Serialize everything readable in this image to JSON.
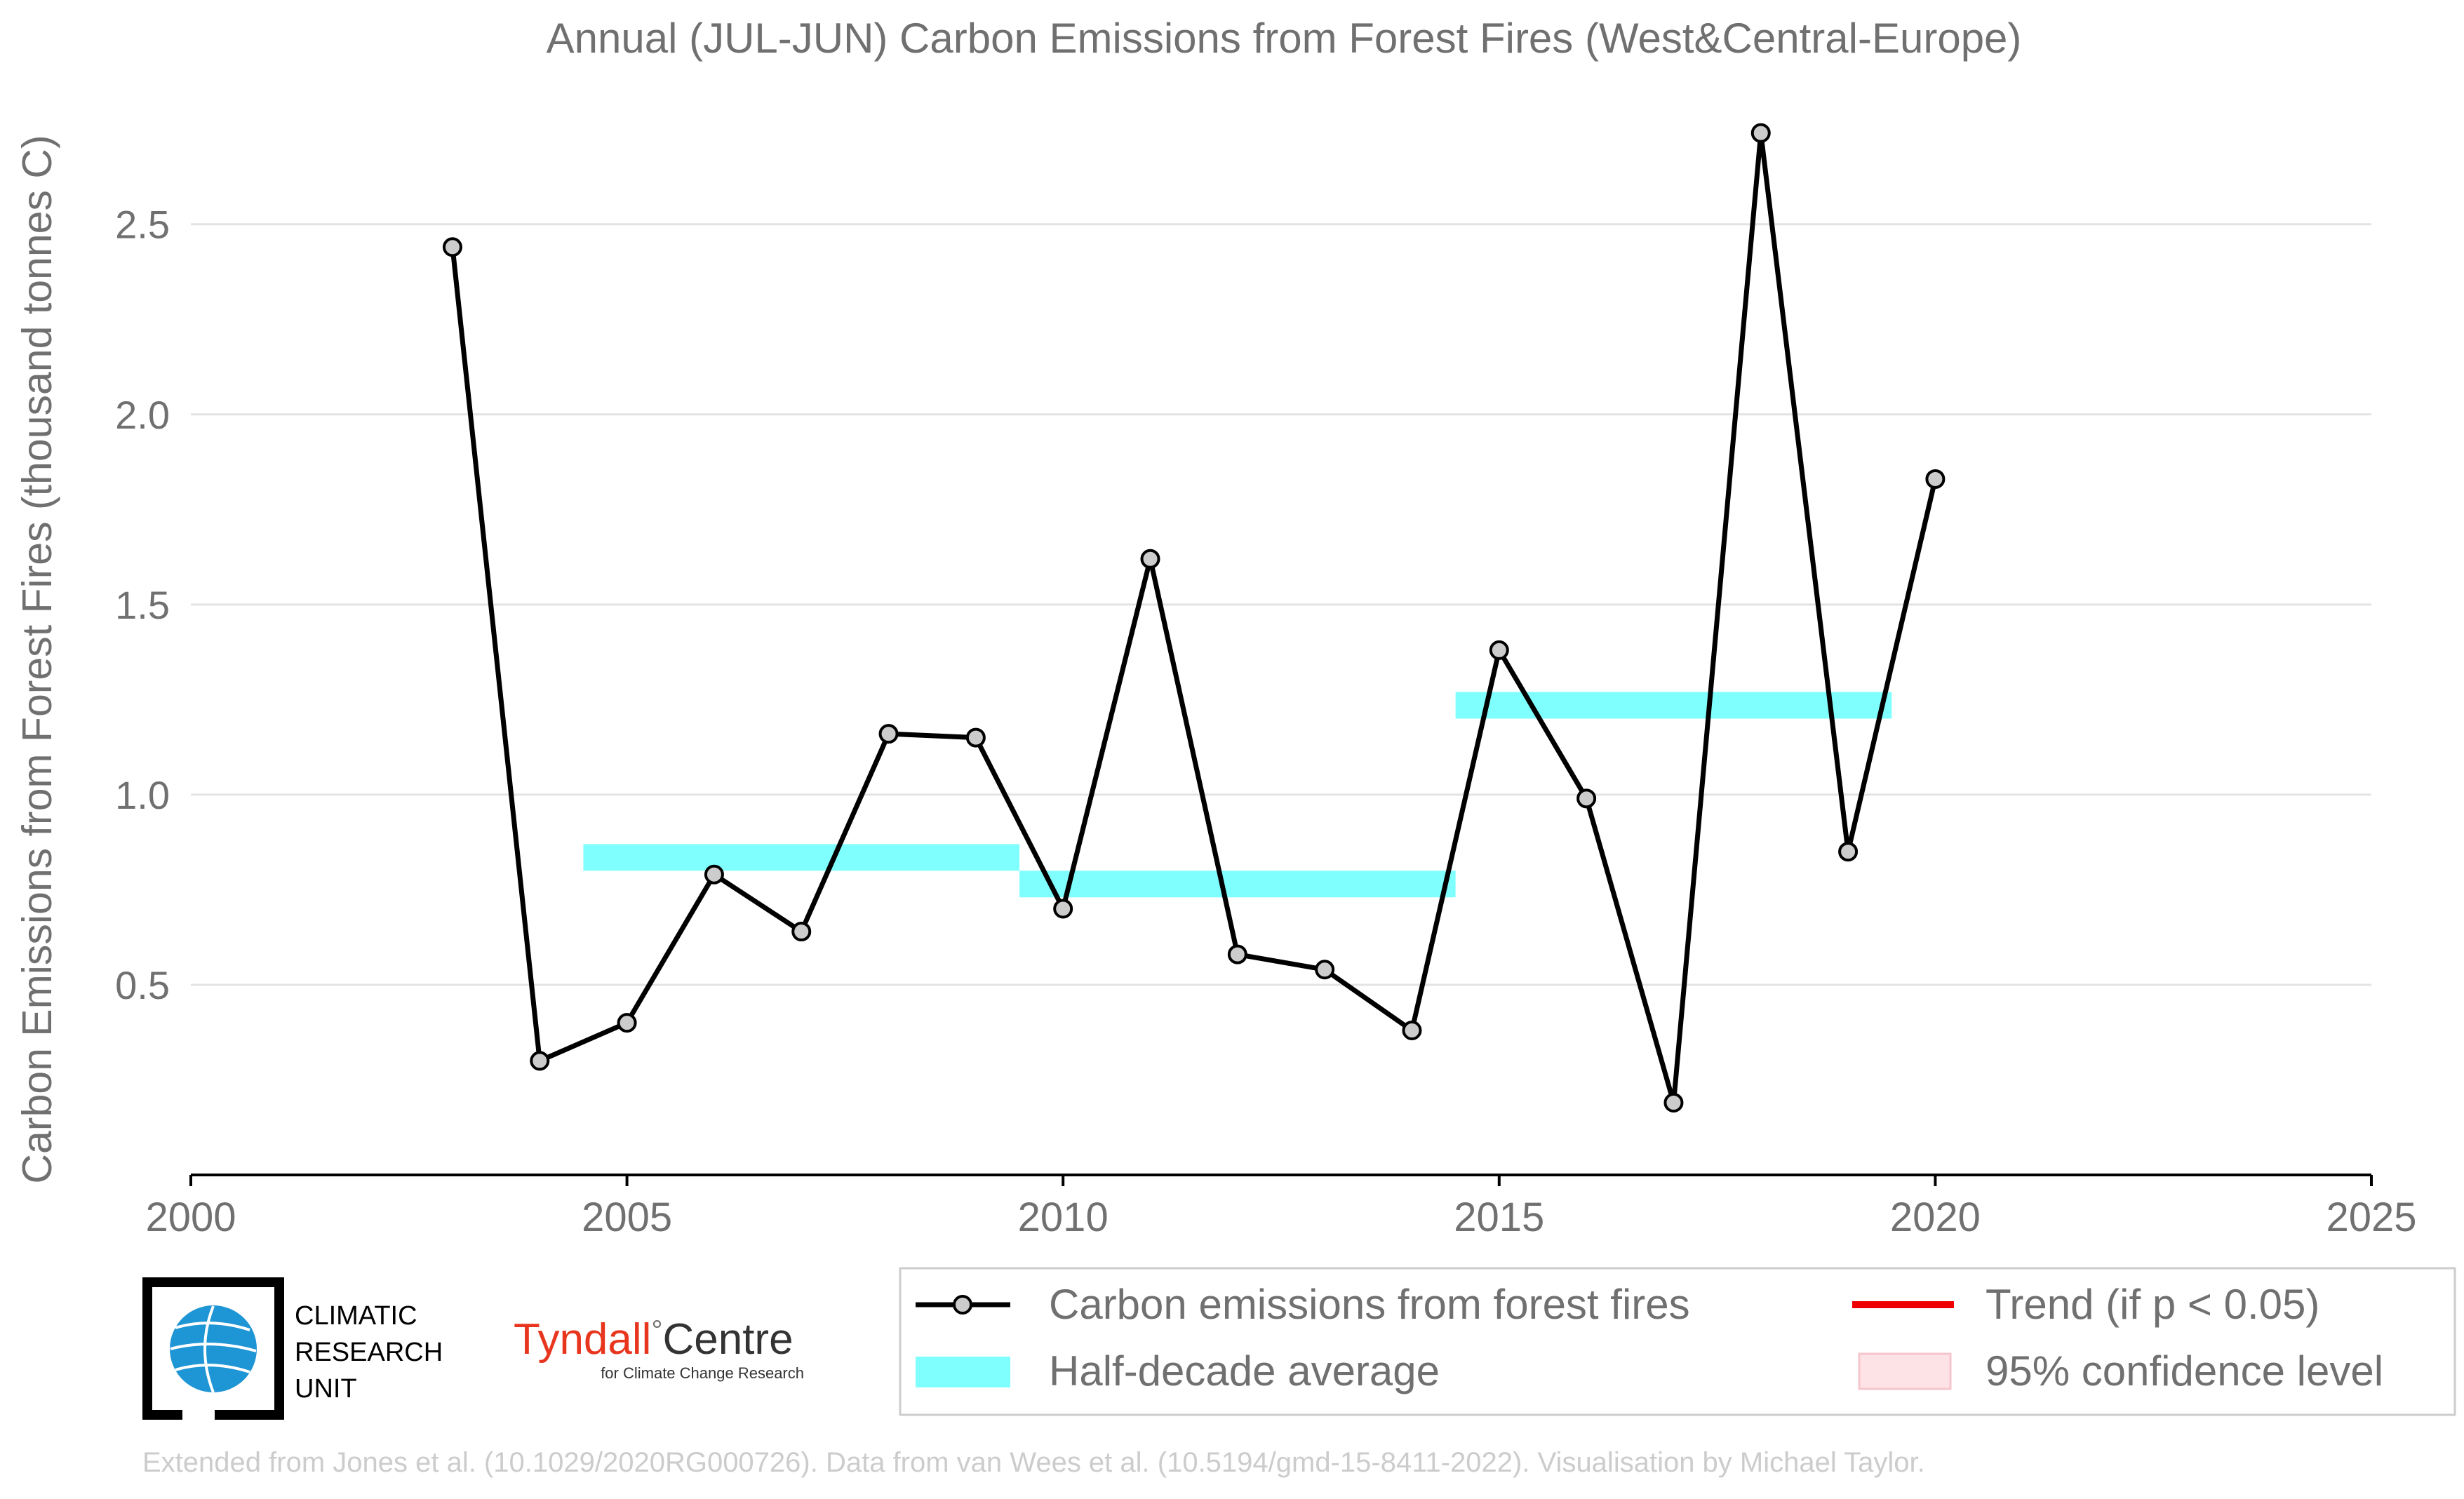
{
  "chart_data": {
    "type": "line",
    "title": "Annual (JUL-JUN) Carbon Emissions from Forest Fires (West&Central-Europe)",
    "ylabel": "Carbon Emissions from Forest Fires (thousand tonnes C)",
    "xlabel": "",
    "xlim": [
      2000,
      2025
    ],
    "ylim": [
      0.0,
      2.85
    ],
    "x_ticks": [
      "2000",
      "2005",
      "2010",
      "2015",
      "2020",
      "2025"
    ],
    "x_tick_values": [
      2000,
      2005,
      2010,
      2015,
      2020,
      2025
    ],
    "y_ticks": [
      "0.5",
      "1.0",
      "1.5",
      "2.0",
      "2.5"
    ],
    "y_tick_values": [
      0.5,
      1.0,
      1.5,
      2.0,
      2.5
    ],
    "grid": "horizontal",
    "series": [
      {
        "name": "Carbon emissions from forest fires",
        "color": "#000000",
        "x": [
          2003,
          2004,
          2005,
          2006,
          2007,
          2008,
          2009,
          2010,
          2011,
          2012,
          2013,
          2014,
          2015,
          2016,
          2017,
          2018,
          2019,
          2020
        ],
        "values": [
          2.44,
          0.3,
          0.4,
          0.79,
          0.64,
          1.16,
          1.15,
          0.7,
          1.62,
          0.58,
          0.54,
          0.38,
          1.38,
          0.99,
          0.19,
          2.74,
          0.85,
          1.83
        ]
      }
    ],
    "half_decade_average": {
      "name": "Half-decade average",
      "color": "#80ffff",
      "segments": [
        {
          "x_start": 2004.5,
          "x_end": 2009.5,
          "low": 0.8,
          "high": 0.87
        },
        {
          "x_start": 2009.5,
          "x_end": 2014.5,
          "low": 0.73,
          "high": 0.8
        },
        {
          "x_start": 2014.5,
          "x_end": 2019.5,
          "low": 1.2,
          "high": 1.27
        }
      ]
    },
    "legend": {
      "placement": "bottom-right",
      "entries": [
        {
          "label": "Carbon emissions from forest fires",
          "color": "#000000",
          "kind": "line-marker"
        },
        {
          "label": "Trend (if p < 0.05)",
          "color": "#ee0000",
          "kind": "line"
        },
        {
          "label": "Half-decade average",
          "color": "#80ffff",
          "kind": "band"
        },
        {
          "label": "95% confidence level",
          "color": "#fde3e6",
          "kind": "patch"
        }
      ]
    }
  },
  "logos": {
    "cru_text": [
      "CLIMATIC",
      "RESEARCH",
      "UNIT"
    ],
    "tyndall_name": "Tyndall",
    "tyndall_degree": "°",
    "tyndall_centre": "Centre",
    "tyndall_sub": "for Climate Change Research"
  },
  "credit": "Extended from Jones et al. (10.1029/2020RG000726). Data from van Wees et al. (10.5194/gmd-15-8411-2022). Visualisation by Michael Taylor."
}
